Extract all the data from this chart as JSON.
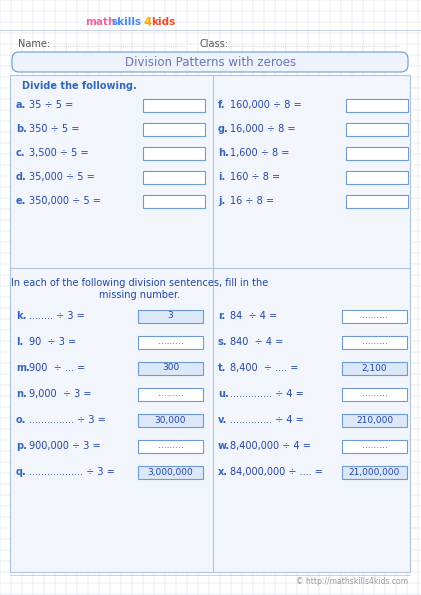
{
  "title": "Division Patterns with zeroes",
  "name_label": "Name:",
  "class_label": "Class:",
  "section1_header": "Divide the following.",
  "section2_header": "In each of the following division sentences, fill in the\nmissing number.",
  "left_problems_s1": [
    {
      "label": "a.",
      "problem": "35 ÷ 5 ="
    },
    {
      "label": "b.",
      "problem": "350 ÷ 5 ="
    },
    {
      "label": "c.",
      "problem": "3,500 ÷ 5 ="
    },
    {
      "label": "d.",
      "problem": "35,000 ÷ 5 ="
    },
    {
      "label": "e.",
      "problem": "350,000 ÷ 5 ="
    }
  ],
  "right_problems_s1": [
    {
      "label": "f.",
      "problem": "160,000 ÷ 8 ="
    },
    {
      "label": "g.",
      "problem": "16,000 ÷ 8 ="
    },
    {
      "label": "h.",
      "problem": "1,600 ÷ 8 ="
    },
    {
      "label": "i.",
      "problem": "160 ÷ 8 ="
    },
    {
      "label": "j.",
      "problem": "16 ÷ 8 ="
    }
  ],
  "left_problems_s2": [
    {
      "label": "k.",
      "problem": "........ ÷ 3 =",
      "answer": "3",
      "answer_filled": true
    },
    {
      "label": "l.",
      "problem": "90  ÷ 3 =",
      "answer": ".........",
      "answer_filled": false
    },
    {
      "label": "m.",
      "problem": "900  ÷ ... =",
      "answer": "300",
      "answer_filled": true
    },
    {
      "label": "n.",
      "problem": "9,000  ÷ 3 =",
      "answer": ".........",
      "answer_filled": false
    },
    {
      "label": "o.",
      "problem": "............... ÷ 3 =",
      "answer": "30,000",
      "answer_filled": true
    },
    {
      "label": "p.",
      "problem": "900,000 ÷ 3 =",
      "answer": ".........",
      "answer_filled": false
    },
    {
      "label": "q.",
      "problem": ".................. ÷ 3 =",
      "answer": "3,000,000",
      "answer_filled": true
    }
  ],
  "right_problems_s2": [
    {
      "label": "r.",
      "problem": "84  ÷ 4 =",
      "answer": ".........",
      "answer_filled": false
    },
    {
      "label": "s.",
      "problem": "840  ÷ 4 =",
      "answer": ".........",
      "answer_filled": false
    },
    {
      "label": "t.",
      "problem": "8,400  ÷ .... =",
      "answer": "2,100",
      "answer_filled": true
    },
    {
      "label": "u.",
      "problem": ".............. ÷ 4 =",
      "answer": ".........",
      "answer_filled": false
    },
    {
      "label": "v.",
      "problem": ".............. ÷ 4 =",
      "answer": "210,000",
      "answer_filled": true
    },
    {
      "label": "w.",
      "problem": "8,400,000 ÷ 4 =",
      "answer": ".........",
      "answer_filled": false
    },
    {
      "label": "x.",
      "problem": "84,000,000 ÷ .... =",
      "answer": "21,000,000",
      "answer_filled": true
    }
  ],
  "footer": "© http://mathskills4kids.com",
  "bg_color": "#ffffff",
  "grid_color": "#ccd8ea",
  "box_border_color": "#6b9bd2",
  "box_fill_color": "#ffffff",
  "answer_box_fill": "#dce8f8",
  "label_color": "#3366bb",
  "problem_color": "#2244aa",
  "divider_color": "#b0c4de",
  "title_color": "#6677bb",
  "name_color": "#555555",
  "logo_math_color": "#ee6699",
  "logo_skills_color": "#4488ff",
  "logo_4_color": "#ffaa00",
  "logo_kids_color": "#ff4422"
}
